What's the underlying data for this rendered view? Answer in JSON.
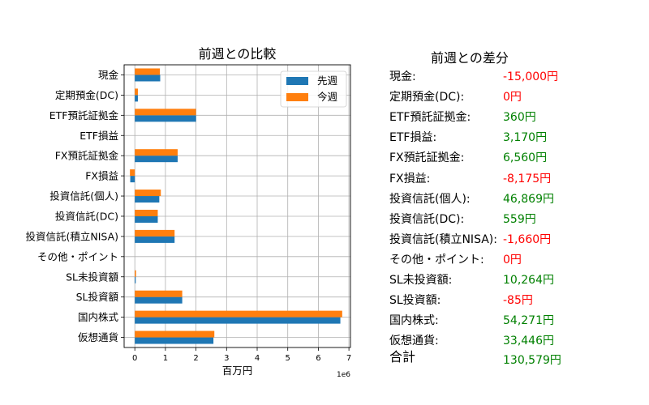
{
  "chart_data": {
    "type": "bar",
    "orientation": "horizontal",
    "title": "前週との比較",
    "xlabel": "百万円",
    "x_offset_label": "1e6",
    "xlim": [
      -0.35,
      7.05
    ],
    "xticks": [
      0,
      1,
      2,
      3,
      4,
      5,
      6,
      7
    ],
    "grid": true,
    "legend_position": "top-right",
    "categories": [
      "現金",
      "定期預金(DC)",
      "ETF預託証拠金",
      "ETF損益",
      "FX預託証拠金",
      "FX損益",
      "投資信託(個人)",
      "投資信託(DC)",
      "投資信託(積立NISA)",
      "その他・ポイント",
      "SL未投資額",
      "SL投資額",
      "国内株式",
      "仮想通貨"
    ],
    "series": [
      {
        "name": "先週",
        "color": "#1f77b4",
        "values": [
          0.83,
          0.1,
          2.0,
          0.0,
          1.4,
          -0.15,
          0.8,
          0.75,
          1.3,
          0.0,
          0.03,
          1.55,
          6.72,
          2.57
        ]
      },
      {
        "name": "今週",
        "color": "#ff7f0e",
        "values": [
          0.82,
          0.1,
          2.0,
          0.0,
          1.4,
          -0.16,
          0.85,
          0.75,
          1.3,
          0.0,
          0.04,
          1.55,
          6.78,
          2.6
        ]
      }
    ]
  },
  "diff": {
    "title": "前週との差分",
    "positive_color": "#008000",
    "negative_color": "#ff0000",
    "items": [
      {
        "label": "現金:",
        "value": "-15,000円",
        "sign": "neg"
      },
      {
        "label": "定期預金(DC):",
        "value": "0円",
        "sign": "neg"
      },
      {
        "label": "ETF預託証拠金:",
        "value": "360円",
        "sign": "pos"
      },
      {
        "label": "ETF損益:",
        "value": "3,170円",
        "sign": "pos"
      },
      {
        "label": "FX預託証拠金:",
        "value": "6,560円",
        "sign": "pos"
      },
      {
        "label": "FX損益:",
        "value": "-8,175円",
        "sign": "neg"
      },
      {
        "label": "投資信託(個人):",
        "value": "46,869円",
        "sign": "pos"
      },
      {
        "label": "投資信託(DC):",
        "value": "559円",
        "sign": "pos"
      },
      {
        "label": "投資信託(積立NISA):",
        "value": "-1,660円",
        "sign": "neg"
      },
      {
        "label": "その他・ポイント:",
        "value": "0円",
        "sign": "neg"
      },
      {
        "label": "SL未投資額:",
        "value": "10,264円",
        "sign": "pos"
      },
      {
        "label": "SL投資額:",
        "value": "-85円",
        "sign": "neg"
      },
      {
        "label": "国内株式:",
        "value": "54,271円",
        "sign": "pos"
      },
      {
        "label": "仮想通貨:",
        "value": "33,446円",
        "sign": "pos"
      }
    ],
    "total": {
      "label": "合計",
      "value": "130,579円",
      "sign": "pos"
    }
  }
}
